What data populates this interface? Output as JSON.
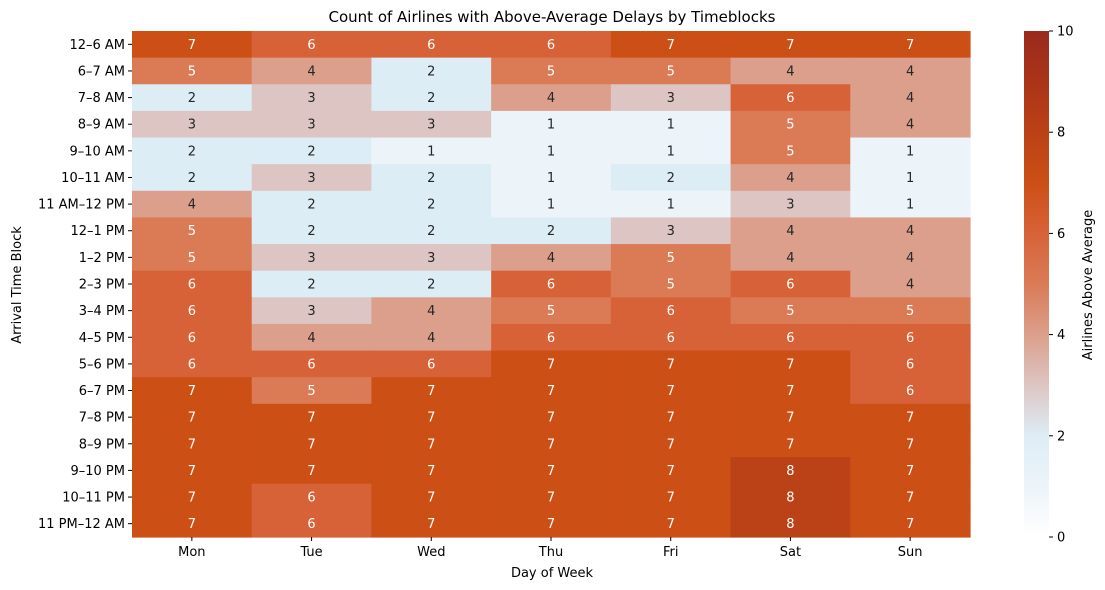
{
  "chart_data": {
    "type": "heatmap",
    "title": "Count of Airlines with Above-Average Delays by Timeblocks",
    "xlabel": "Day of Week",
    "ylabel": "Arrival Time Block",
    "x_categories": [
      "Mon",
      "Tue",
      "Wed",
      "Thu",
      "Fri",
      "Sat",
      "Sun"
    ],
    "y_categories": [
      "12–6 AM",
      "6–7 AM",
      "7–8 AM",
      "8–9 AM",
      "9–10 AM",
      "10–11 AM",
      "11 AM–12 PM",
      "12–1 PM",
      "1–2 PM",
      "2–3 PM",
      "3–4 PM",
      "4–5 PM",
      "5–6 PM",
      "6–7 PM",
      "7–8 PM",
      "8–9 PM",
      "9–10 PM",
      "10–11 PM",
      "11 PM–12 AM"
    ],
    "values": [
      [
        7,
        6,
        6,
        6,
        7,
        7,
        7
      ],
      [
        5,
        4,
        2,
        5,
        5,
        4,
        4
      ],
      [
        2,
        3,
        2,
        4,
        3,
        6,
        4
      ],
      [
        3,
        3,
        3,
        1,
        1,
        5,
        4
      ],
      [
        2,
        2,
        1,
        1,
        1,
        5,
        1
      ],
      [
        2,
        3,
        2,
        1,
        2,
        4,
        1
      ],
      [
        4,
        2,
        2,
        1,
        1,
        3,
        1
      ],
      [
        5,
        2,
        2,
        2,
        3,
        4,
        4
      ],
      [
        5,
        3,
        3,
        4,
        5,
        4,
        4
      ],
      [
        6,
        2,
        2,
        6,
        5,
        6,
        4
      ],
      [
        6,
        3,
        4,
        5,
        6,
        5,
        5
      ],
      [
        6,
        4,
        4,
        6,
        6,
        6,
        6
      ],
      [
        6,
        6,
        6,
        7,
        7,
        7,
        6
      ],
      [
        7,
        5,
        7,
        7,
        7,
        7,
        6
      ],
      [
        7,
        7,
        7,
        7,
        7,
        7,
        7
      ],
      [
        7,
        7,
        7,
        7,
        7,
        7,
        7
      ],
      [
        7,
        7,
        7,
        7,
        7,
        8,
        7
      ],
      [
        7,
        6,
        7,
        7,
        7,
        8,
        7
      ],
      [
        7,
        6,
        7,
        7,
        7,
        8,
        7
      ]
    ],
    "colorbar": {
      "label": "Airlines Above Average",
      "range": [
        0,
        10
      ],
      "ticks": [
        0,
        2,
        4,
        6,
        8,
        10
      ]
    },
    "colormap": {
      "0": "#ffffff",
      "1": "#ecf4f9",
      "2": "#ddedf6",
      "3": "#ddc5c3",
      "4": "#dc9f8b",
      "5": "#da7b56",
      "6": "#d76238",
      "7": "#cc4f15",
      "8": "#bb4116",
      "9": "#aa3418",
      "10": "#9a2a1e"
    },
    "light_text_color": "#ffffff",
    "dark_text_color": "#262626"
  }
}
